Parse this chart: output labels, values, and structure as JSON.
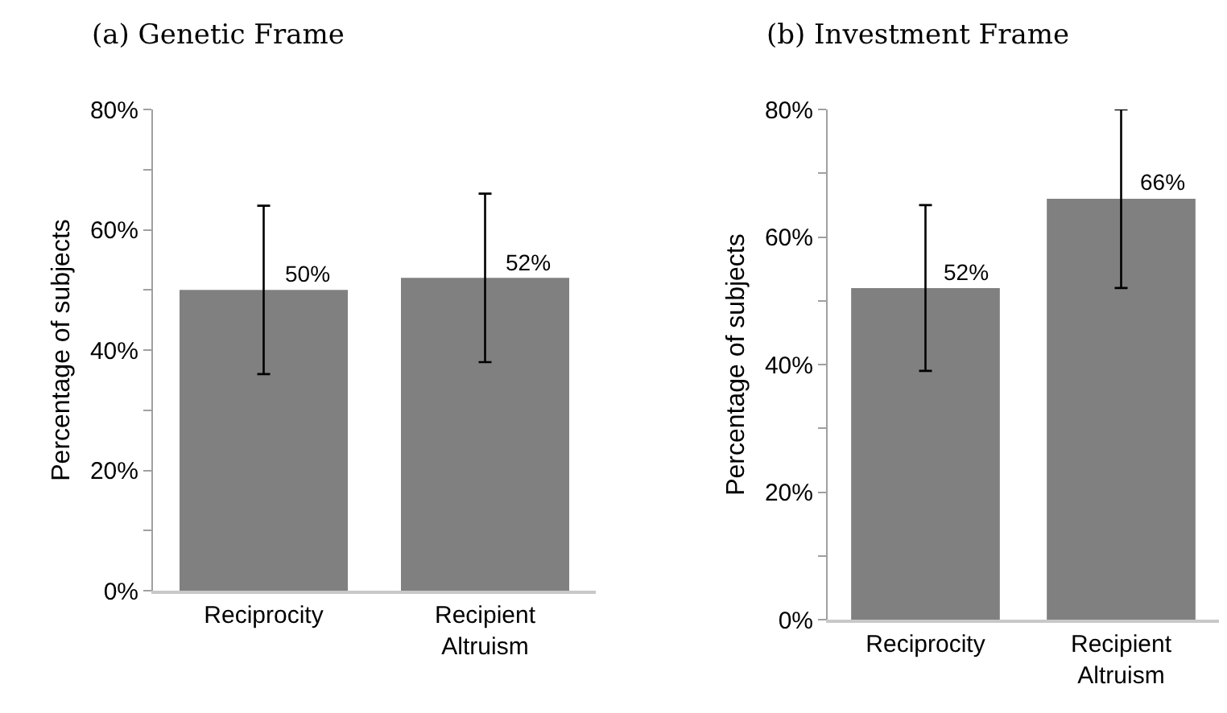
{
  "chart_data": [
    {
      "type": "bar",
      "title": "(a) Genetic Frame",
      "ylabel": "Percentage of subjects",
      "categories": [
        "Reciprocity",
        "Recipient Altruism"
      ],
      "values": [
        50,
        52
      ],
      "errors": [
        14,
        14
      ],
      "color": "#808080",
      "value_labels": [
        "50%",
        "52%"
      ],
      "ylim": [
        0,
        80
      ],
      "yticks": [
        {
          "value": 0,
          "label": "0%"
        },
        {
          "value": 10,
          "label": null
        },
        {
          "value": 20,
          "label": "20%"
        },
        {
          "value": 30,
          "label": null
        },
        {
          "value": 40,
          "label": "40%"
        },
        {
          "value": 50,
          "label": null
        },
        {
          "value": 60,
          "label": "60%"
        },
        {
          "value": 70,
          "label": null
        },
        {
          "value": 80,
          "label": "80%"
        }
      ],
      "orientation": "vertical"
    },
    {
      "type": "bar",
      "title": "(b) Investment Frame",
      "ylabel": "Percentage of subjects",
      "categories": [
        "Reciprocity",
        "Recipient Altruism"
      ],
      "values": [
        52,
        66
      ],
      "errors": [
        13,
        14
      ],
      "color": "#808080",
      "value_labels": [
        "52%",
        "66%"
      ],
      "ylim": [
        0,
        80
      ],
      "yticks": [
        {
          "value": 0,
          "label": "0%"
        },
        {
          "value": 10,
          "label": null
        },
        {
          "value": 20,
          "label": "20%"
        },
        {
          "value": 30,
          "label": null
        },
        {
          "value": 40,
          "label": "40%"
        },
        {
          "value": 50,
          "label": null
        },
        {
          "value": 60,
          "label": "60%"
        },
        {
          "value": 70,
          "label": null
        },
        {
          "value": 80,
          "label": "80%"
        }
      ],
      "orientation": "vertical"
    }
  ]
}
